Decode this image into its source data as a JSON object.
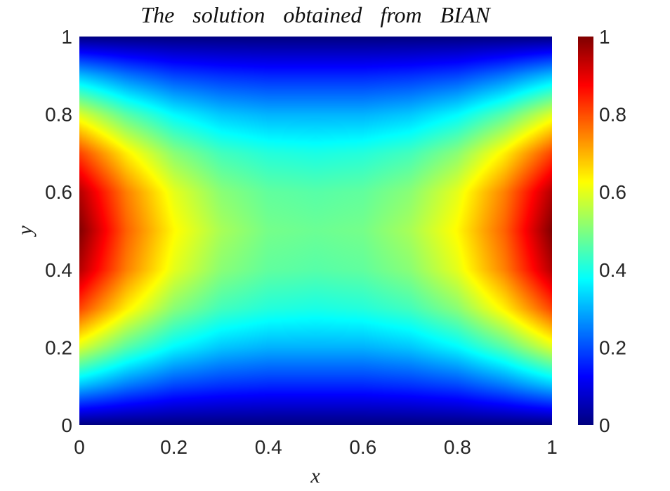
{
  "chart_data": {
    "type": "heatmap",
    "title": "The solution obtained from BIAN",
    "xlabel": "x",
    "ylabel": "y",
    "xlim": [
      0,
      1
    ],
    "ylim": [
      0,
      1
    ],
    "x_ticks": [
      {
        "value": 0,
        "label": "0"
      },
      {
        "value": 0.2,
        "label": "0.2"
      },
      {
        "value": 0.4,
        "label": "0.4"
      },
      {
        "value": 0.6,
        "label": "0.6"
      },
      {
        "value": 0.8,
        "label": "0.8"
      },
      {
        "value": 1,
        "label": "1"
      }
    ],
    "y_ticks": [
      {
        "value": 0,
        "label": "0"
      },
      {
        "value": 0.2,
        "label": "0.2"
      },
      {
        "value": 0.4,
        "label": "0.4"
      },
      {
        "value": 0.6,
        "label": "0.6"
      },
      {
        "value": 0.8,
        "label": "0.8"
      },
      {
        "value": 1,
        "label": "1"
      }
    ],
    "colorbar": {
      "colormap": "jet",
      "range": [
        0,
        1
      ],
      "ticks": [
        {
          "value": 0,
          "label": "0"
        },
        {
          "value": 0.2,
          "label": "0.2"
        },
        {
          "value": 0.4,
          "label": "0.4"
        },
        {
          "value": 0.6,
          "label": "0.6"
        },
        {
          "value": 0.8,
          "label": "0.8"
        },
        {
          "value": 1,
          "label": "1"
        }
      ]
    },
    "grid": false,
    "field_samples": {
      "x": [
        0,
        0.1,
        0.2,
        0.3,
        0.4,
        0.5,
        0.6,
        0.7,
        0.8,
        0.9,
        1
      ],
      "y": [
        0,
        0.1,
        0.2,
        0.3,
        0.4,
        0.5,
        0.6,
        0.7,
        0.8,
        0.9,
        1
      ],
      "values": [
        [
          0,
          0,
          0,
          0,
          0,
          0,
          0,
          0,
          0,
          0,
          0
        ],
        [
          0.31,
          0.24,
          0.19,
          0.17,
          0.16,
          0.16,
          0.16,
          0.17,
          0.19,
          0.24,
          0.31
        ],
        [
          0.59,
          0.46,
          0.37,
          0.32,
          0.3,
          0.3,
          0.3,
          0.32,
          0.37,
          0.46,
          0.59
        ],
        [
          0.81,
          0.64,
          0.51,
          0.44,
          0.41,
          0.4,
          0.41,
          0.44,
          0.51,
          0.64,
          0.81
        ],
        [
          0.95,
          0.75,
          0.6,
          0.51,
          0.47,
          0.46,
          0.47,
          0.51,
          0.6,
          0.75,
          0.95
        ],
        [
          1,
          0.78,
          0.63,
          0.54,
          0.49,
          0.48,
          0.49,
          0.54,
          0.63,
          0.78,
          1
        ],
        [
          0.95,
          0.75,
          0.6,
          0.51,
          0.47,
          0.46,
          0.47,
          0.51,
          0.6,
          0.75,
          0.95
        ],
        [
          0.81,
          0.64,
          0.51,
          0.44,
          0.41,
          0.4,
          0.41,
          0.44,
          0.51,
          0.64,
          0.81
        ],
        [
          0.59,
          0.46,
          0.37,
          0.32,
          0.3,
          0.3,
          0.3,
          0.32,
          0.37,
          0.46,
          0.59
        ],
        [
          0.31,
          0.24,
          0.19,
          0.17,
          0.16,
          0.16,
          0.16,
          0.17,
          0.19,
          0.24,
          0.31
        ],
        [
          0,
          0,
          0,
          0,
          0,
          0,
          0,
          0,
          0,
          0,
          0
        ]
      ]
    }
  }
}
